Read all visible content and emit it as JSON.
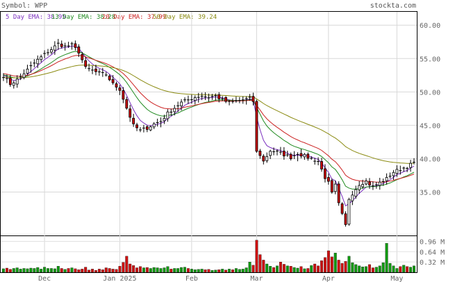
{
  "header": {
    "symbol_label": "Symbol: WPP",
    "site": "stockta.com"
  },
  "legend": [
    {
      "text": "5 Day EMA: 38.95",
      "color": "#7b2fbf"
    },
    {
      "text": "13 Day EMA: 38.28",
      "color": "#1f8a1f"
    },
    {
      "text": "20 Day EMA: 37.99",
      "color": "#cc2222"
    },
    {
      "text": "50 Day EMA: 39.24",
      "color": "#8a8a10"
    }
  ],
  "chart_data": {
    "type": "candlestick",
    "price_axis": {
      "ylim": [
        28.5,
        62.0
      ],
      "ticks": [
        {
          "label": "60.00",
          "value": 60
        },
        {
          "label": "55.00",
          "value": 55
        },
        {
          "label": "50.00",
          "value": 50
        },
        {
          "label": "45.00",
          "value": 45
        },
        {
          "label": "40.00",
          "value": 40
        },
        {
          "label": "35.00",
          "value": 35
        }
      ]
    },
    "volume_axis": {
      "ylim": [
        0,
        1.08
      ],
      "ticks": [
        {
          "label": "0.96 M",
          "value": 0.96
        },
        {
          "label": "0.64 M",
          "value": 0.64
        },
        {
          "label": "0.32 M",
          "value": 0.32
        }
      ]
    },
    "x_labels": [
      {
        "label": "Dec",
        "index": 12
      },
      {
        "label": "Jan 2025",
        "index": 34
      },
      {
        "label": "Feb",
        "index": 55
      },
      {
        "label": "Mar",
        "index": 74
      },
      {
        "label": "Apr",
        "index": 95
      },
      {
        "label": "May",
        "index": 115
      }
    ],
    "n": 121,
    "grid": true,
    "anchors": [
      [
        0,
        52.4
      ],
      [
        2,
        51.2
      ],
      [
        4,
        51.8
      ],
      [
        6,
        52.8
      ],
      [
        8,
        53.8
      ],
      [
        10,
        54.8
      ],
      [
        12,
        55.6
      ],
      [
        14,
        56.4
      ],
      [
        16,
        57.2
      ],
      [
        18,
        56.8
      ],
      [
        20,
        57.0
      ],
      [
        22,
        56.0
      ],
      [
        24,
        53.6
      ],
      [
        26,
        53.2
      ],
      [
        28,
        52.8
      ],
      [
        30,
        52.6
      ],
      [
        32,
        51.2
      ],
      [
        34,
        50.4
      ],
      [
        36,
        47.6
      ],
      [
        38,
        45.0
      ],
      [
        40,
        44.2
      ],
      [
        42,
        44.6
      ],
      [
        44,
        45.2
      ],
      [
        46,
        45.6
      ],
      [
        48,
        46.8
      ],
      [
        50,
        47.6
      ],
      [
        52,
        48.4
      ],
      [
        54,
        48.8
      ],
      [
        56,
        49.2
      ],
      [
        58,
        49.4
      ],
      [
        60,
        49.2
      ],
      [
        62,
        49.4
      ],
      [
        64,
        48.8
      ],
      [
        66,
        48.4
      ],
      [
        68,
        48.6
      ],
      [
        70,
        48.8
      ],
      [
        72,
        49.0
      ],
      [
        73,
        48.6
      ],
      [
        74,
        41.0
      ],
      [
        75,
        40.6
      ],
      [
        76,
        39.6
      ],
      [
        78,
        41.2
      ],
      [
        80,
        41.0
      ],
      [
        82,
        40.6
      ],
      [
        84,
        40.2
      ],
      [
        86,
        40.8
      ],
      [
        88,
        40.4
      ],
      [
        90,
        40.0
      ],
      [
        92,
        39.6
      ],
      [
        94,
        37.2
      ],
      [
        95,
        36.4
      ],
      [
        96,
        34.8
      ],
      [
        97,
        36.0
      ],
      [
        98,
        33.2
      ],
      [
        99,
        31.6
      ],
      [
        100,
        30.0
      ],
      [
        101,
        34.0
      ],
      [
        102,
        34.8
      ],
      [
        104,
        36.2
      ],
      [
        106,
        36.6
      ],
      [
        108,
        35.8
      ],
      [
        110,
        36.4
      ],
      [
        112,
        37.0
      ],
      [
        114,
        38.0
      ],
      [
        116,
        38.4
      ],
      [
        118,
        38.8
      ],
      [
        120,
        39.4
      ]
    ],
    "volume": [
      0.11,
      0.13,
      0.09,
      0.12,
      0.14,
      0.1,
      0.12,
      0.11,
      0.13,
      0.12,
      0.15,
      0.1,
      0.16,
      0.12,
      0.12,
      0.11,
      0.19,
      0.12,
      0.09,
      0.12,
      0.14,
      0.11,
      0.08,
      0.1,
      0.16,
      0.07,
      0.1,
      0.06,
      0.1,
      0.08,
      0.14,
      0.12,
      0.1,
      0.09,
      0.19,
      0.31,
      0.5,
      0.26,
      0.21,
      0.14,
      0.18,
      0.14,
      0.15,
      0.12,
      0.15,
      0.14,
      0.12,
      0.14,
      0.18,
      0.1,
      0.12,
      0.12,
      0.15,
      0.16,
      0.12,
      0.1,
      0.08,
      0.09,
      0.1,
      0.08,
      0.09,
      0.06,
      0.07,
      0.08,
      0.1,
      0.07,
      0.1,
      0.08,
      0.12,
      0.09,
      0.1,
      0.14,
      0.32,
      0.22,
      1.0,
      0.55,
      0.38,
      0.26,
      0.19,
      0.15,
      0.2,
      0.32,
      0.25,
      0.2,
      0.19,
      0.15,
      0.13,
      0.18,
      0.11,
      0.12,
      0.21,
      0.26,
      0.2,
      0.36,
      0.46,
      0.67,
      0.48,
      0.6,
      0.38,
      0.28,
      0.34,
      0.5,
      0.3,
      0.24,
      0.2,
      0.17,
      0.18,
      0.24,
      0.14,
      0.16,
      0.2,
      0.3,
      0.9,
      0.28,
      0.2,
      0.12,
      0.18,
      0.22,
      0.18,
      0.16,
      0.2
    ]
  }
}
